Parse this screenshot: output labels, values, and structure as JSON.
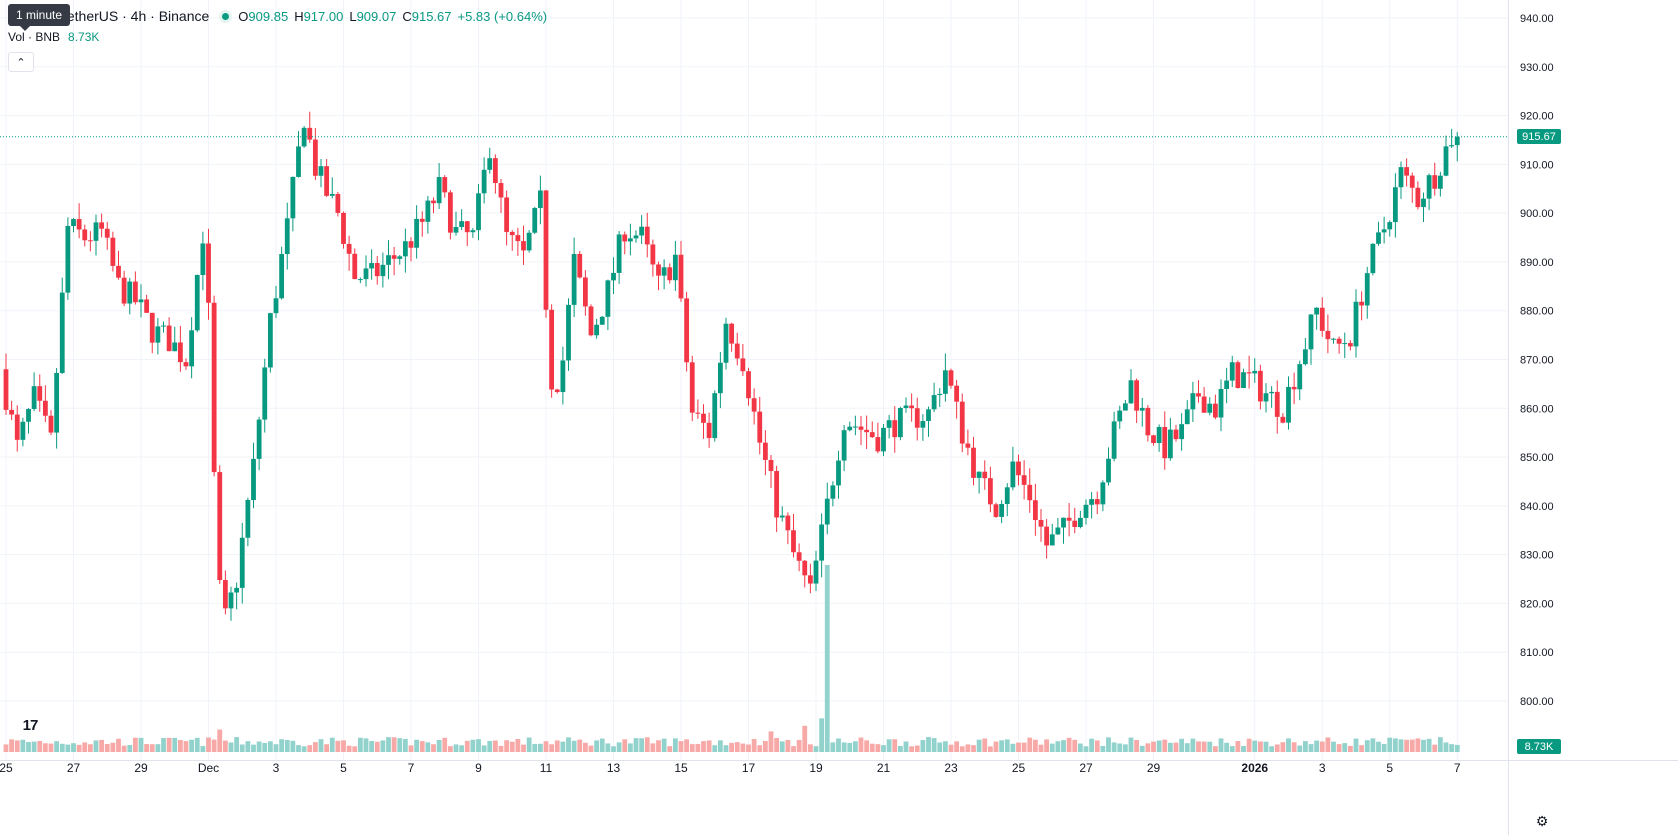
{
  "legend": {
    "title": "e Coin / TetherUS · 4h · Binance",
    "o_label": "O",
    "o_value": "909.85",
    "h_label": "H",
    "h_value": "917.00",
    "l_label": "L",
    "l_value": "909.07",
    "c_label": "C",
    "c_value": "915.67",
    "change": "+5.83 (+0.64%)"
  },
  "volume_legend": {
    "label": "Vol · BNB",
    "value": "8.73K"
  },
  "tooltip": "1 minute",
  "logo_text": "17",
  "last_price_tag": "915.67",
  "volume_tag": "8.73K",
  "colors": {
    "up": "#089981",
    "down": "#f23645",
    "up_volume": "#92d2cc",
    "down_volume": "#f7a9a7",
    "grid": "#f0f3fa"
  },
  "icons": {
    "collapse": "chevron-up-icon",
    "settings": "gear-icon",
    "logo": "tradingview-logo-icon"
  },
  "chart_data": {
    "type": "candlestick",
    "symbol": "e Coin / TetherUS",
    "interval": "4h",
    "exchange": "Binance",
    "ylim": [
      794,
      942
    ],
    "y_ticks": [
      "940.00",
      "930.00",
      "920.00",
      "910.00",
      "900.00",
      "890.00",
      "880.00",
      "870.00",
      "860.00",
      "850.00",
      "840.00",
      "830.00",
      "820.00",
      "810.00",
      "800.00"
    ],
    "x_ticks": [
      {
        "label": "25",
        "day": 0
      },
      {
        "label": "27",
        "day": 2
      },
      {
        "label": "29",
        "day": 4
      },
      {
        "label": "Dec",
        "day": 6
      },
      {
        "label": "3",
        "day": 8
      },
      {
        "label": "5",
        "day": 10
      },
      {
        "label": "7",
        "day": 12
      },
      {
        "label": "9",
        "day": 14
      },
      {
        "label": "11",
        "day": 16
      },
      {
        "label": "13",
        "day": 18
      },
      {
        "label": "15",
        "day": 20
      },
      {
        "label": "17",
        "day": 22
      },
      {
        "label": "19",
        "day": 24
      },
      {
        "label": "21",
        "day": 26
      },
      {
        "label": "23",
        "day": 28
      },
      {
        "label": "25",
        "day": 30
      },
      {
        "label": "27",
        "day": 32
      },
      {
        "label": "29",
        "day": 34
      },
      {
        "label": "2026",
        "day": 37
      },
      {
        "label": "3",
        "day": 39
      },
      {
        "label": "5",
        "day": 41
      },
      {
        "label": "7",
        "day": 43
      }
    ],
    "last_price": 915.67,
    "path": [
      [
        0.0,
        868
      ],
      [
        0.5,
        852
      ],
      [
        1.0,
        862
      ],
      [
        1.5,
        853
      ],
      [
        2.0,
        897
      ],
      [
        2.5,
        895
      ],
      [
        3.0,
        896
      ],
      [
        3.5,
        885
      ],
      [
        4.0,
        882
      ],
      [
        4.5,
        876
      ],
      [
        5.0,
        874
      ],
      [
        5.5,
        870
      ],
      [
        6.0,
        896
      ],
      [
        6.2,
        876
      ],
      [
        6.4,
        830
      ],
      [
        6.6,
        815
      ],
      [
        7.0,
        825
      ],
      [
        7.5,
        848
      ],
      [
        8.0,
        878
      ],
      [
        8.5,
        897
      ],
      [
        9.0,
        920
      ],
      [
        9.3,
        910
      ],
      [
        9.6,
        905
      ],
      [
        10.0,
        900
      ],
      [
        10.5,
        887
      ],
      [
        11.0,
        887
      ],
      [
        11.5,
        890
      ],
      [
        12.0,
        893
      ],
      [
        12.5,
        898
      ],
      [
        13.0,
        905
      ],
      [
        13.5,
        896
      ],
      [
        14.0,
        895
      ],
      [
        14.5,
        914
      ],
      [
        15.0,
        895
      ],
      [
        15.5,
        891
      ],
      [
        16.0,
        902
      ],
      [
        16.3,
        866
      ],
      [
        16.6,
        866
      ],
      [
        17.0,
        890
      ],
      [
        17.5,
        875
      ],
      [
        18.0,
        884
      ],
      [
        18.5,
        897
      ],
      [
        19.0,
        895
      ],
      [
        19.5,
        885
      ],
      [
        20.0,
        891
      ],
      [
        20.5,
        859
      ],
      [
        21.0,
        855
      ],
      [
        21.5,
        878
      ],
      [
        22.0,
        870
      ],
      [
        22.5,
        853
      ],
      [
        23.0,
        840
      ],
      [
        23.5,
        830
      ],
      [
        24.0,
        822
      ],
      [
        24.5,
        840
      ],
      [
        25.0,
        858
      ],
      [
        25.5,
        856
      ],
      [
        26.0,
        854
      ],
      [
        26.5,
        857
      ],
      [
        27.0,
        858
      ],
      [
        27.5,
        859
      ],
      [
        28.0,
        868
      ],
      [
        28.5,
        855
      ],
      [
        29.0,
        845
      ],
      [
        29.5,
        840
      ],
      [
        30.0,
        848
      ],
      [
        30.5,
        842
      ],
      [
        31.0,
        832
      ],
      [
        31.5,
        835
      ],
      [
        32.0,
        840
      ],
      [
        32.5,
        843
      ],
      [
        33.0,
        855
      ],
      [
        33.5,
        865
      ],
      [
        34.0,
        856
      ],
      [
        34.5,
        852
      ],
      [
        35.0,
        855
      ],
      [
        35.5,
        863
      ],
      [
        36.0,
        860
      ],
      [
        36.5,
        867
      ],
      [
        37.0,
        866
      ],
      [
        37.5,
        863
      ],
      [
        38.0,
        860
      ],
      [
        38.5,
        870
      ],
      [
        39.0,
        880
      ],
      [
        39.5,
        872
      ],
      [
        40.0,
        875
      ],
      [
        40.5,
        888
      ],
      [
        41.0,
        897
      ],
      [
        41.5,
        908
      ],
      [
        42.0,
        903
      ],
      [
        42.5,
        908
      ],
      [
        43.0,
        915.67
      ]
    ],
    "volume_ylim": [
      0,
      100
    ],
    "volume_spikes": [
      {
        "day": 24.3,
        "value": 100
      },
      {
        "day": 24.1,
        "value": 18
      },
      {
        "day": 23.6,
        "value": 14
      },
      {
        "day": 6.3,
        "value": 12
      },
      {
        "day": 22.7,
        "value": 11
      }
    ]
  }
}
